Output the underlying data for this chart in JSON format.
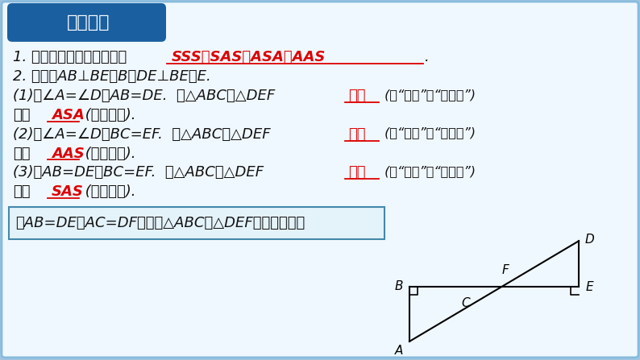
{
  "bg_color": "#ddeeff",
  "bg_outer": "#a0c4e0",
  "inner_bg": "#f0f8ff",
  "title_bg": "#1a5fa0",
  "title_text": "针对练习",
  "title_color": "#ffffff",
  "line1_prefix": "1. 判定两个三角形全等方法",
  "line1_answer": "SSS、SAS、ASA、AAS",
  "line1_suffix": ".",
  "line2": "2. 如图，AB⊥BE于B，DE⊥BE于E.",
  "q1_prefix": "(1)若∠A=∠D，AB=DE.  则△ABC与△DEF",
  "q1_answer": "全等",
  "q1_suffix": " (填“全等”或“不全等”)",
  "q1_basis_prefix": "根据",
  "q1_basis": "ASA",
  "q1_basis_suffix": " (用简写法).",
  "q2_prefix": "(2)若∠A=∠D，BC=EF.  则△ABC与△DEF",
  "q2_answer": "全等",
  "q2_suffix": " (填“全等”或“不全等”)",
  "q2_basis_prefix": "根据",
  "q2_basis": "AAS",
  "q2_basis_suffix": " (用简写法).",
  "q3_prefix": "(3)若AB=DE，BC=EF.  则△ABC与△DEF",
  "q3_answer": "全等",
  "q3_suffix": " (填“全等”或“不全等”)",
  "q3_basis_prefix": "根据",
  "q3_basis": "SAS",
  "q3_basis_suffix": " (用简写法).",
  "box_question": "若AB=DE，AC=DF，此时△ABC与△DEF还会全等吗？",
  "answer_color": "#dd0000",
  "text_color": "#111111",
  "font_size_main": 13,
  "font_size_title": 16
}
